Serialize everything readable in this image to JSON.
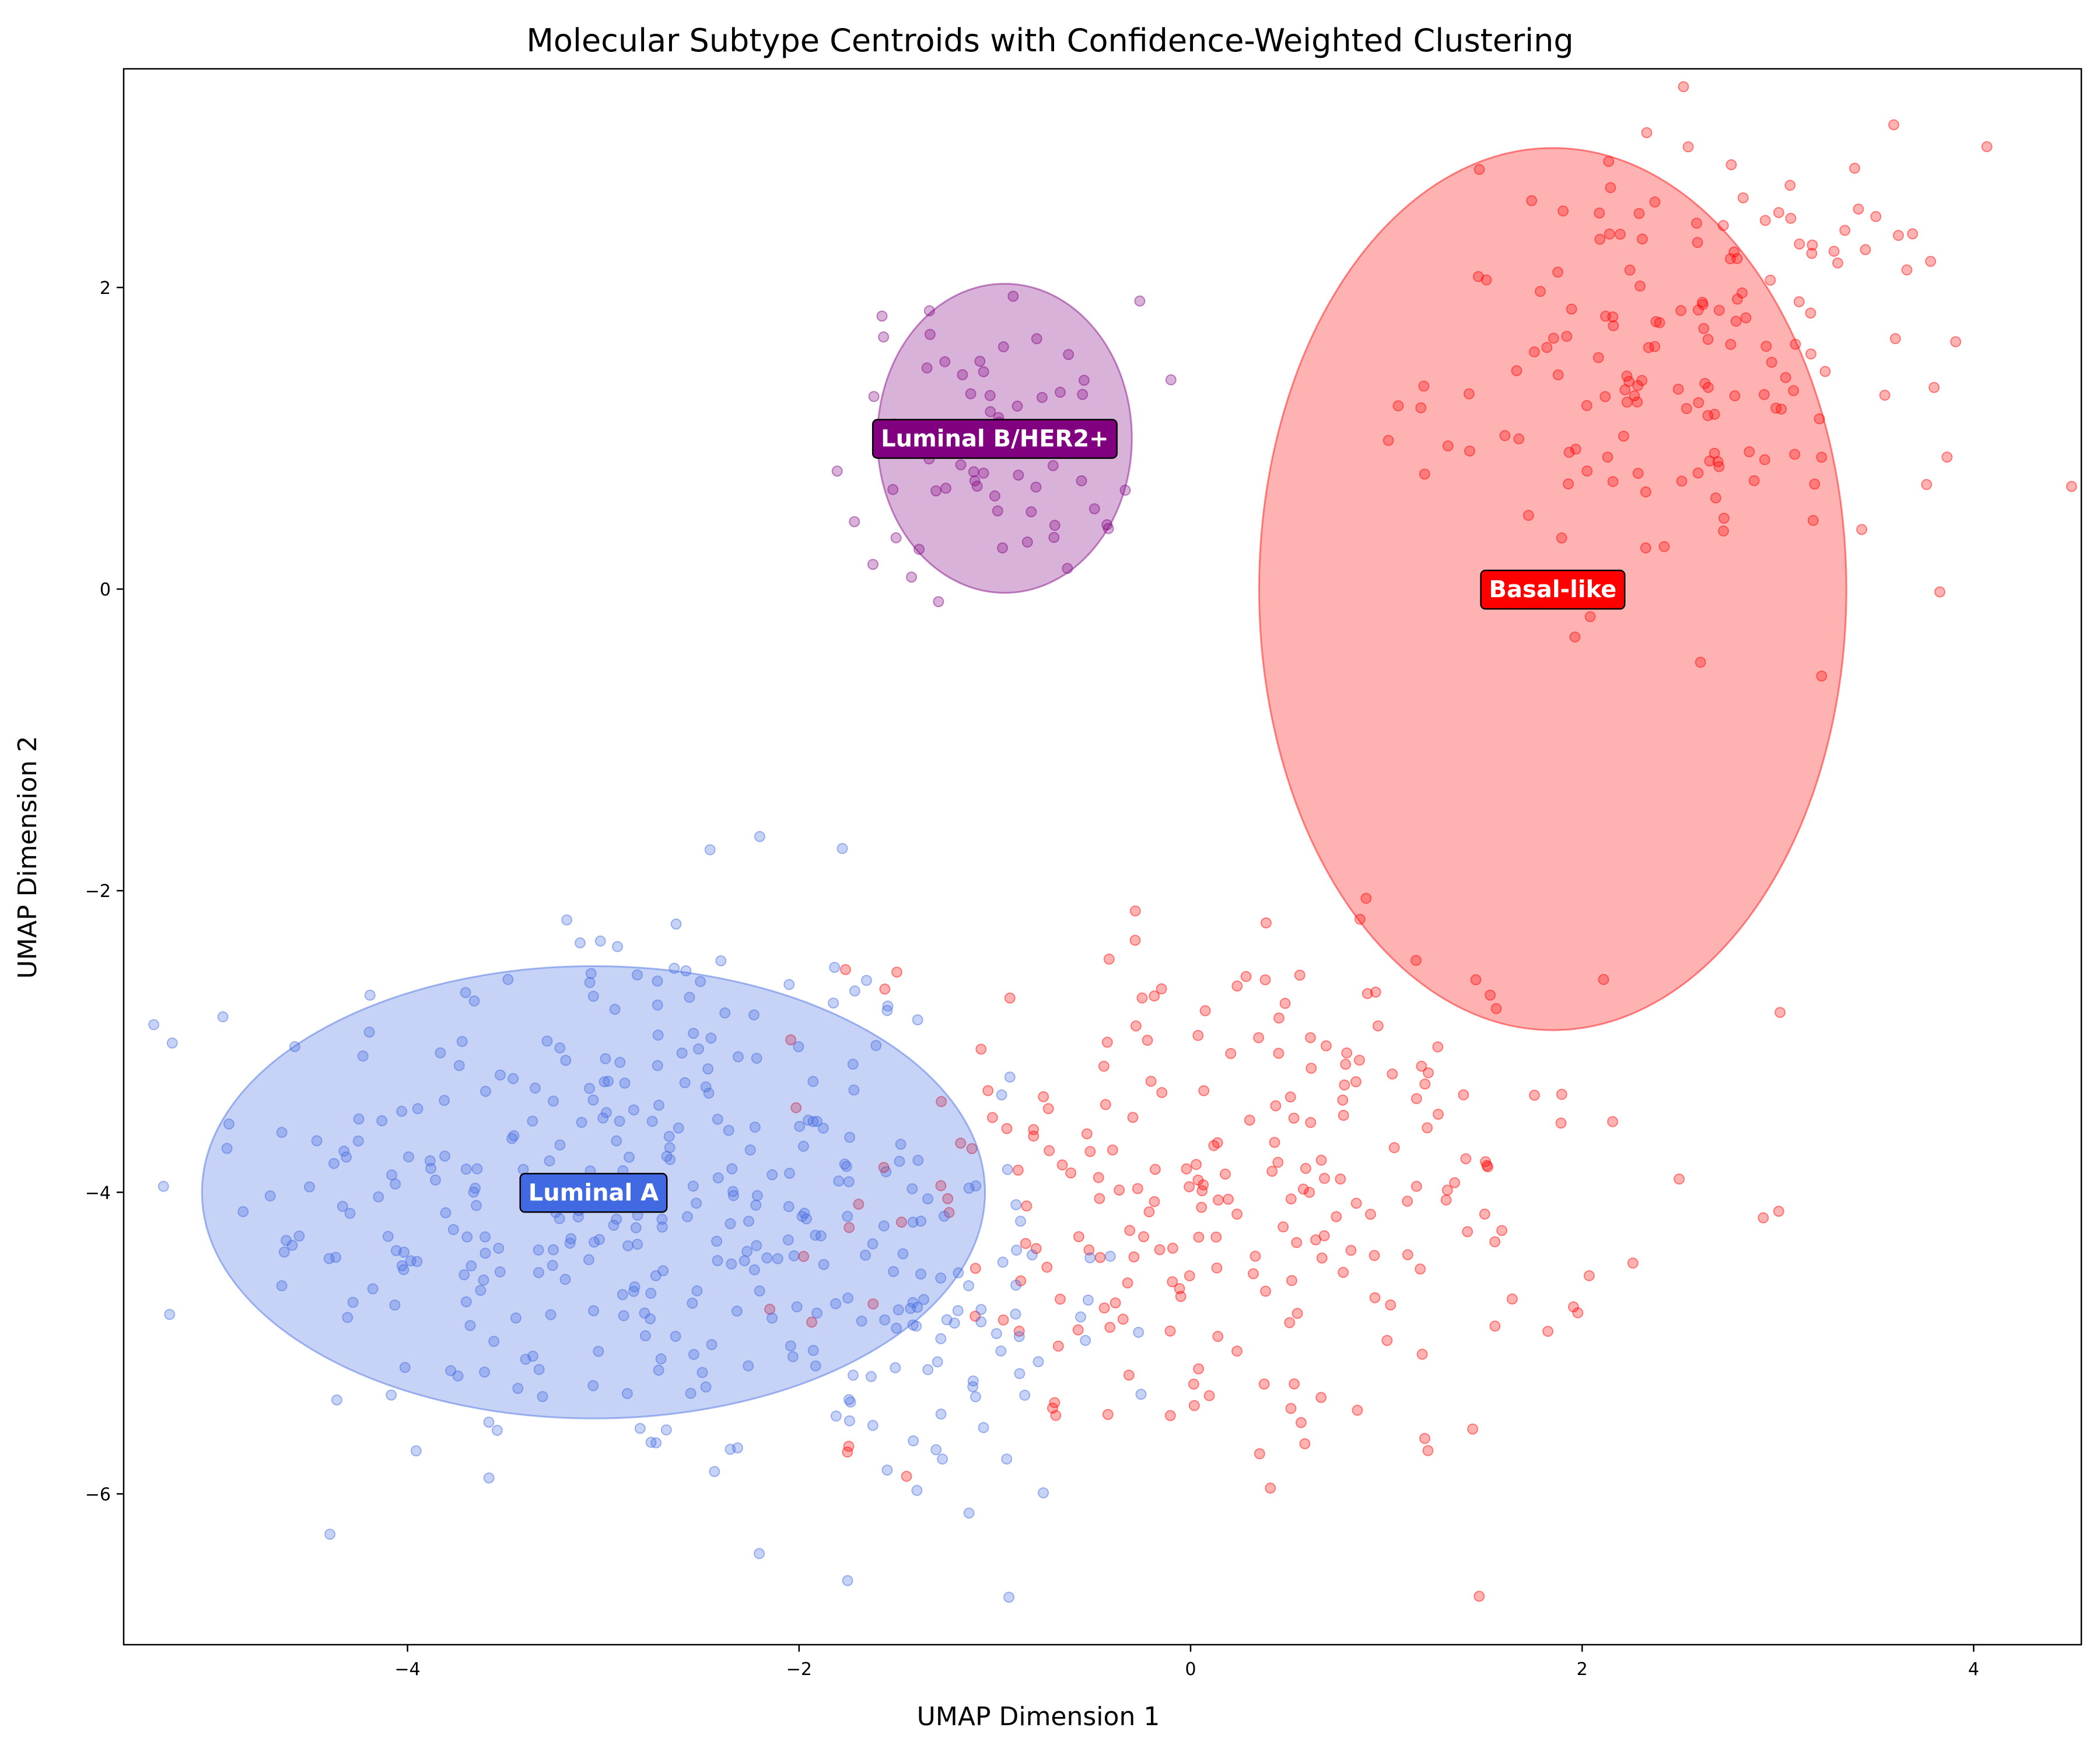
{
  "chart_data": {
    "type": "scatter",
    "title": "Molecular Subtype Centroids with Confidence-Weighted Clustering",
    "xlabel": "UMAP Dimension 1",
    "ylabel": "UMAP Dimension 2",
    "xlim": [
      -5.45,
      4.55
    ],
    "ylim": [
      -7.0,
      3.45
    ],
    "xticks": [
      -4,
      -2,
      0,
      2,
      4
    ],
    "yticks": [
      -6,
      -4,
      -2,
      0,
      2
    ],
    "grid": false,
    "clusters": [
      {
        "name": "Luminal A",
        "color": "#4169E1",
        "center": [
          -3.05,
          -4.0
        ],
        "width": 4.0,
        "height": 3.0,
        "label_xy": [
          -3.05,
          -4.0
        ]
      },
      {
        "name": "Luminal B/HER2+",
        "color": "#800080",
        "center": [
          -0.95,
          1.0
        ],
        "width": 1.3,
        "height": 2.05,
        "label_xy": [
          -1.0,
          1.0
        ]
      },
      {
        "name": "Basal-like",
        "color": "#FF0000",
        "center": [
          1.85,
          0.0
        ],
        "width": 3.0,
        "height": 5.85,
        "label_xy": [
          1.85,
          0.0
        ]
      }
    ],
    "point_groups": [
      {
        "name": "Luminal A samples",
        "color": "#4169E1",
        "count": 300,
        "center": [
          -3.0,
          -4.0
        ],
        "spread": [
          1.05,
          1.15
        ]
      },
      {
        "name": "Luminal B/HER2+ samples",
        "color": "#800080",
        "count": 70,
        "center": [
          -1.0,
          1.0
        ],
        "spread": [
          0.45,
          0.55
        ]
      },
      {
        "name": "Basal-like samples (upper)",
        "color": "#FF0000",
        "count": 160,
        "center": [
          2.6,
          1.5
        ],
        "spread": [
          0.8,
          0.85
        ]
      },
      {
        "name": "Basal-like samples (lower)",
        "color": "#FF0000",
        "count": 240,
        "center": [
          0.2,
          -4.0
        ],
        "spread": [
          1.1,
          1.05
        ]
      },
      {
        "name": "Luminal A samples (bridge)",
        "color": "#4169E1",
        "count": 90,
        "center": [
          -1.4,
          -4.9
        ],
        "spread": [
          0.6,
          0.8
        ]
      }
    ]
  }
}
